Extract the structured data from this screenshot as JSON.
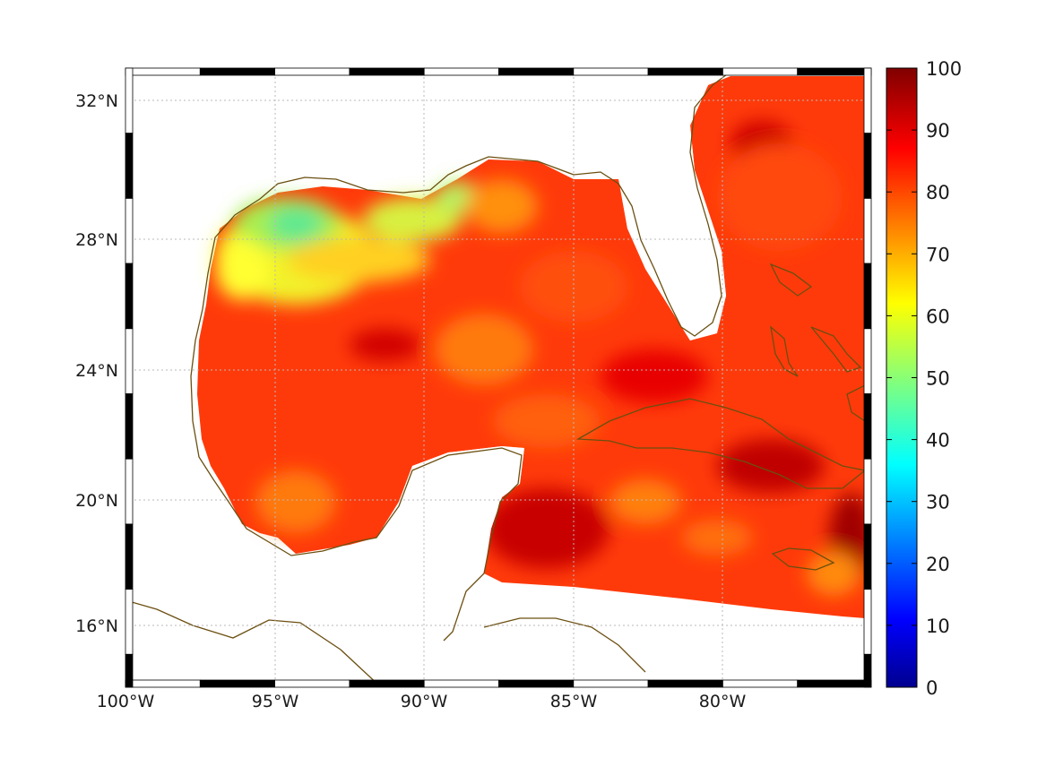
{
  "map": {
    "lon_labels": [
      "100°W",
      "95°W",
      "90°W",
      "85°W",
      "80°W"
    ],
    "lon_values": [
      -100,
      -95,
      -90,
      -85,
      -80
    ],
    "lat_labels": [
      "16°N",
      "20°N",
      "24°N",
      "28°N",
      "32°N"
    ],
    "lat_values": [
      16,
      20,
      24,
      28,
      32
    ],
    "extent": {
      "lon_min": -100,
      "lon_max": -75,
      "lat_min": 14.2,
      "lat_max": 33
    },
    "grid": true,
    "coastline_color": "#6b4f10",
    "field": "Gulf of Mexico and Caribbean percentage field (0–100)"
  },
  "colorbar": {
    "tick_labels": [
      "0",
      "10",
      "20",
      "30",
      "40",
      "50",
      "60",
      "70",
      "80",
      "90",
      "100"
    ],
    "min": 0,
    "max": 100,
    "colormap": "jet"
  }
}
